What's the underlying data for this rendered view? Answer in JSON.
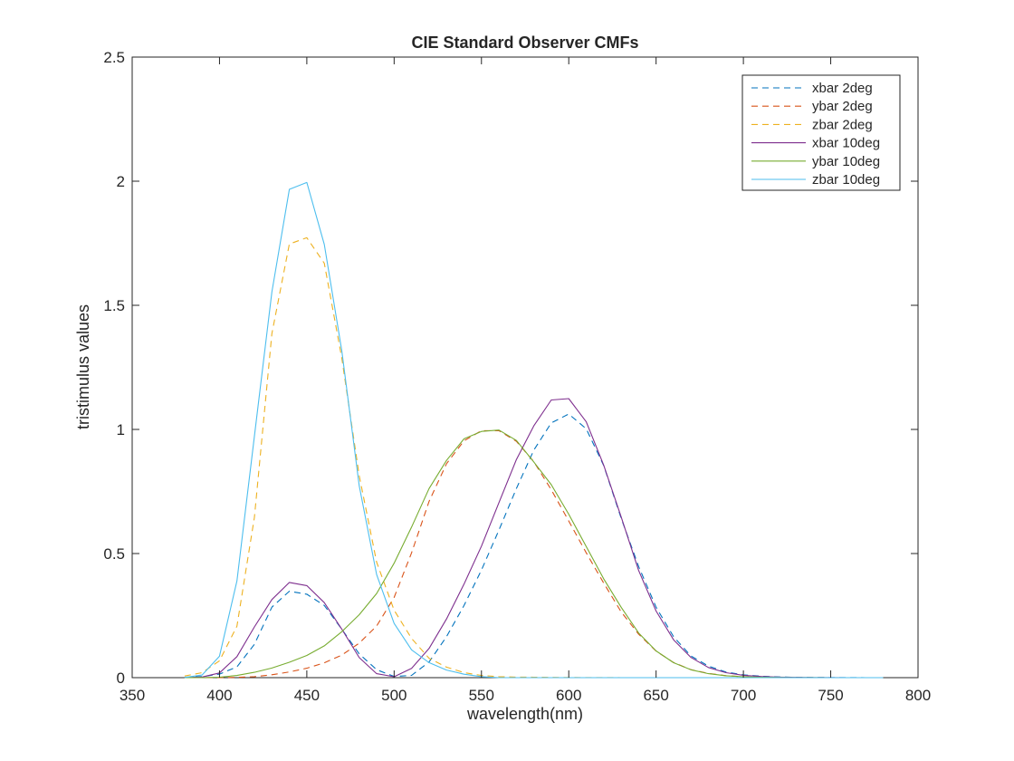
{
  "chart_data": {
    "type": "line",
    "title": "CIE Standard Observer CMFs",
    "xlabel": "wavelength(nm)",
    "ylabel": "tristimulus values",
    "xlim": [
      350,
      800
    ],
    "ylim": [
      0,
      2.5
    ],
    "xticks": [
      350,
      400,
      450,
      500,
      550,
      600,
      650,
      700,
      750,
      800
    ],
    "yticks": [
      0,
      0.5,
      1,
      1.5,
      2,
      2.5
    ],
    "xtick_labels": [
      "350",
      "400",
      "450",
      "500",
      "550",
      "600",
      "650",
      "700",
      "750",
      "800"
    ],
    "ytick_labels": [
      "0",
      "0.5",
      "1",
      "1.5",
      "2",
      "2.5"
    ],
    "grid": false,
    "legend_position": "top-right",
    "x": [
      380,
      390,
      400,
      410,
      420,
      430,
      440,
      450,
      460,
      470,
      480,
      490,
      500,
      510,
      520,
      530,
      540,
      550,
      560,
      570,
      580,
      590,
      600,
      610,
      620,
      630,
      640,
      650,
      660,
      670,
      680,
      690,
      700,
      710,
      720,
      730,
      740,
      750,
      760,
      770,
      780
    ],
    "series": [
      {
        "name": "xbar 2deg",
        "style": "dashed",
        "color": "#0072BD",
        "values": [
          0.0014,
          0.0042,
          0.0143,
          0.0435,
          0.1344,
          0.2839,
          0.3483,
          0.3362,
          0.2908,
          0.1954,
          0.0956,
          0.032,
          0.0049,
          0.0093,
          0.0633,
          0.1655,
          0.2904,
          0.4334,
          0.5945,
          0.7621,
          0.9163,
          1.0263,
          1.0622,
          1.0026,
          0.8544,
          0.6424,
          0.4479,
          0.2835,
          0.1649,
          0.0874,
          0.0468,
          0.0227,
          0.0114,
          0.0058,
          0.0029,
          0.0014,
          0.0007,
          0.0003,
          0.0002,
          0.0001,
          0.0
        ]
      },
      {
        "name": "ybar 2deg",
        "style": "dashed",
        "color": "#D95319",
        "values": [
          0.0,
          0.0001,
          0.0004,
          0.0012,
          0.004,
          0.0116,
          0.023,
          0.038,
          0.06,
          0.091,
          0.139,
          0.208,
          0.323,
          0.503,
          0.71,
          0.862,
          0.954,
          0.995,
          0.995,
          0.952,
          0.87,
          0.757,
          0.631,
          0.503,
          0.381,
          0.265,
          0.175,
          0.107,
          0.061,
          0.032,
          0.017,
          0.0082,
          0.0041,
          0.0021,
          0.001,
          0.0005,
          0.0003,
          0.0001,
          0.0001,
          0.0,
          0.0
        ]
      },
      {
        "name": "zbar 2deg",
        "style": "dashed",
        "color": "#EDB120",
        "values": [
          0.0065,
          0.0201,
          0.0679,
          0.2074,
          0.6456,
          1.3856,
          1.7471,
          1.7721,
          1.6692,
          1.2876,
          0.813,
          0.4652,
          0.272,
          0.1582,
          0.0782,
          0.0422,
          0.0203,
          0.0087,
          0.0039,
          0.0021,
          0.0017,
          0.0011,
          0.0008,
          0.0003,
          0.0002,
          0.0,
          0.0,
          0.0,
          0.0,
          0.0,
          0.0,
          0.0,
          0.0,
          0.0,
          0.0,
          0.0,
          0.0,
          0.0,
          0.0,
          0.0,
          0.0
        ]
      },
      {
        "name": "xbar 10deg",
        "style": "solid",
        "color": "#7E2F8E",
        "values": [
          0.0002,
          0.0024,
          0.0191,
          0.0847,
          0.2045,
          0.3147,
          0.3837,
          0.3707,
          0.3023,
          0.1956,
          0.0805,
          0.0162,
          0.0038,
          0.0375,
          0.1177,
          0.2365,
          0.3768,
          0.5298,
          0.7052,
          0.8787,
          1.0142,
          1.1185,
          1.124,
          1.0305,
          0.8563,
          0.6475,
          0.4316,
          0.2683,
          0.1526,
          0.0813,
          0.0409,
          0.0199,
          0.0096,
          0.0046,
          0.0022,
          0.001,
          0.0005,
          0.0003,
          0.0001,
          0.0001,
          0.0
        ]
      },
      {
        "name": "ybar 10deg",
        "style": "solid",
        "color": "#77AC30",
        "values": [
          0.0,
          0.0003,
          0.002,
          0.0088,
          0.0214,
          0.0387,
          0.0621,
          0.0895,
          0.1282,
          0.1852,
          0.2536,
          0.3391,
          0.4608,
          0.6067,
          0.7618,
          0.8752,
          0.962,
          0.9918,
          0.9973,
          0.9556,
          0.8689,
          0.7774,
          0.6583,
          0.528,
          0.3981,
          0.2835,
          0.1798,
          0.1076,
          0.0603,
          0.0318,
          0.0159,
          0.0077,
          0.0037,
          0.0018,
          0.0008,
          0.0004,
          0.0002,
          0.0001,
          0.0,
          0.0,
          0.0
        ]
      },
      {
        "name": "zbar 10deg",
        "style": "solid",
        "color": "#4DBEEE",
        "values": [
          0.0007,
          0.0105,
          0.086,
          0.3894,
          0.9725,
          1.5535,
          1.9673,
          1.9948,
          1.7454,
          1.3176,
          0.7721,
          0.4153,
          0.2185,
          0.112,
          0.0607,
          0.0305,
          0.0137,
          0.004,
          0.0,
          0.0,
          0.0,
          0.0,
          0.0,
          0.0,
          0.0,
          0.0,
          0.0,
          0.0,
          0.0,
          0.0,
          0.0,
          0.0,
          0.0,
          0.0,
          0.0,
          0.0,
          0.0,
          0.0,
          0.0,
          0.0,
          0.0
        ]
      }
    ]
  }
}
